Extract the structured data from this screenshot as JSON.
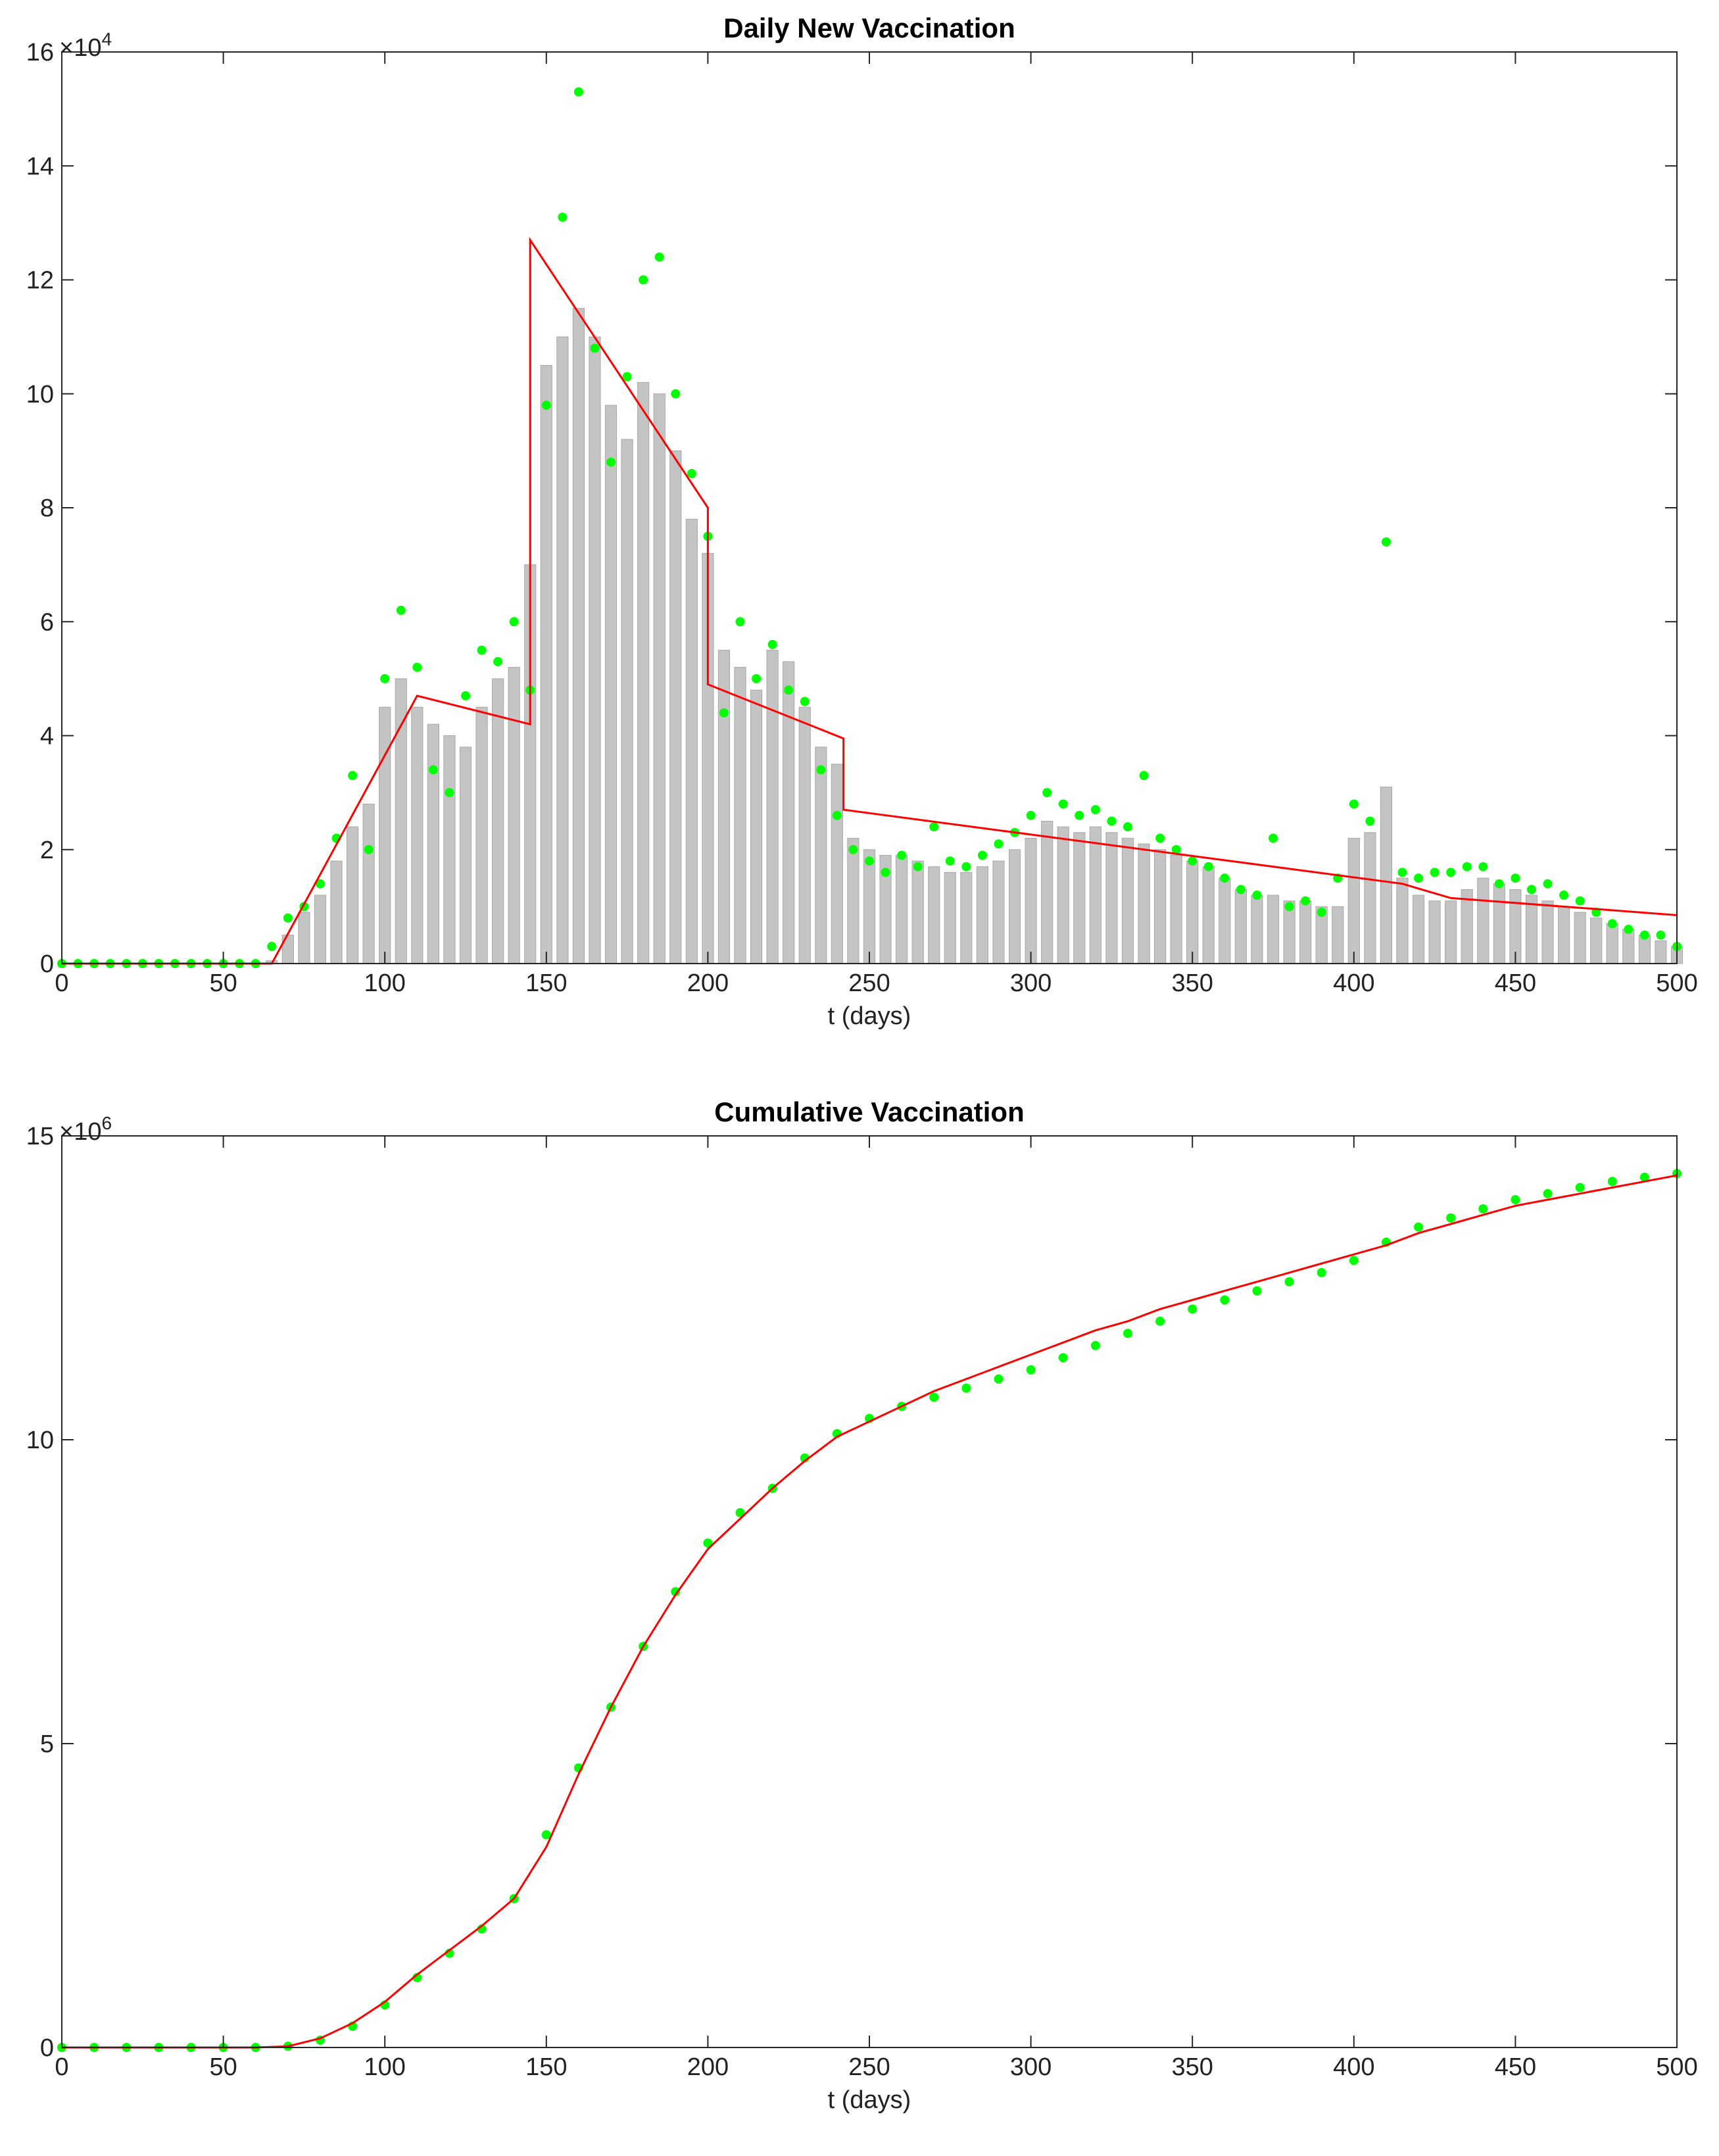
{
  "chart_data": [
    {
      "type": "combo",
      "title": "Daily New Vaccination",
      "x_label": "t (days)",
      "y_exponent_base": "×10",
      "y_exponent": 4,
      "xlim": [
        0,
        500
      ],
      "xticks": [
        0,
        50,
        100,
        150,
        200,
        250,
        300,
        350,
        400,
        450,
        500
      ],
      "ylim": [
        0,
        160000
      ],
      "yticks": [
        {
          "value": 0,
          "label": "0"
        },
        {
          "value": 20000,
          "label": "2"
        },
        {
          "value": 40000,
          "label": "4"
        },
        {
          "value": 60000,
          "label": "6"
        },
        {
          "value": 80000,
          "label": "8"
        },
        {
          "value": 100000,
          "label": "10"
        },
        {
          "value": 120000,
          "label": "12"
        },
        {
          "value": 140000,
          "label": "14"
        },
        {
          "value": 160000,
          "label": "16"
        }
      ],
      "series": [
        {
          "type": "bar",
          "color": "#c4c4c4",
          "x": [
            0,
            5,
            10,
            15,
            20,
            25,
            30,
            35,
            40,
            45,
            50,
            55,
            60,
            65,
            70,
            75,
            80,
            85,
            90,
            95,
            100,
            105,
            110,
            115,
            120,
            125,
            130,
            135,
            140,
            145,
            150,
            155,
            160,
            165,
            170,
            175,
            180,
            185,
            190,
            195,
            200,
            205,
            210,
            215,
            220,
            225,
            230,
            235,
            240,
            245,
            250,
            255,
            260,
            265,
            270,
            275,
            280,
            285,
            290,
            295,
            300,
            305,
            310,
            315,
            320,
            325,
            330,
            335,
            340,
            345,
            350,
            355,
            360,
            365,
            370,
            375,
            380,
            385,
            390,
            395,
            400,
            405,
            410,
            415,
            420,
            425,
            430,
            435,
            440,
            445,
            450,
            455,
            460,
            465,
            470,
            475,
            480,
            485,
            490,
            495,
            500
          ],
          "values": [
            0,
            0,
            0,
            0,
            0,
            0,
            0,
            0,
            0,
            0,
            0,
            0,
            0,
            500,
            5000,
            9000,
            12000,
            18000,
            24000,
            28000,
            45000,
            50000,
            45000,
            42000,
            40000,
            38000,
            45000,
            50000,
            52000,
            70000,
            105000,
            110000,
            115000,
            110000,
            98000,
            92000,
            102000,
            100000,
            90000,
            78000,
            72000,
            55000,
            52000,
            48000,
            55000,
            53000,
            45000,
            38000,
            35000,
            22000,
            20000,
            19000,
            19000,
            18000,
            17000,
            16000,
            16000,
            17000,
            18000,
            20000,
            22000,
            25000,
            24000,
            23000,
            24000,
            23000,
            22000,
            21000,
            20000,
            19000,
            18000,
            17000,
            15000,
            13000,
            12000,
            12000,
            11000,
            11000,
            10000,
            10000,
            22000,
            23000,
            31000,
            15000,
            12000,
            11000,
            11000,
            13000,
            15000,
            14000,
            13000,
            12000,
            11000,
            10000,
            9000,
            8000,
            7000,
            6000,
            5000,
            4000,
            3000
          ]
        },
        {
          "type": "scatter",
          "color": "#00ff00",
          "x": [
            0,
            5,
            10,
            15,
            20,
            25,
            30,
            35,
            40,
            45,
            50,
            55,
            60,
            65,
            70,
            75,
            80,
            85,
            90,
            95,
            100,
            105,
            110,
            115,
            120,
            125,
            130,
            135,
            140,
            145,
            150,
            155,
            160,
            165,
            170,
            175,
            180,
            185,
            190,
            195,
            200,
            205,
            210,
            215,
            220,
            225,
            230,
            235,
            240,
            245,
            250,
            255,
            260,
            265,
            270,
            275,
            280,
            285,
            290,
            295,
            300,
            305,
            310,
            315,
            320,
            325,
            330,
            335,
            340,
            345,
            350,
            355,
            360,
            365,
            370,
            375,
            380,
            385,
            390,
            395,
            400,
            405,
            410,
            415,
            420,
            425,
            430,
            435,
            440,
            445,
            450,
            455,
            460,
            465,
            470,
            475,
            480,
            485,
            490,
            495,
            500
          ],
          "values": [
            0,
            0,
            0,
            0,
            0,
            0,
            0,
            0,
            0,
            0,
            0,
            0,
            0,
            3000,
            8000,
            10000,
            14000,
            22000,
            33000,
            20000,
            50000,
            62000,
            52000,
            34000,
            30000,
            47000,
            55000,
            53000,
            60000,
            48000,
            98000,
            131000,
            153000,
            108000,
            88000,
            103000,
            120000,
            124000,
            100000,
            86000,
            75000,
            44000,
            60000,
            50000,
            56000,
            48000,
            46000,
            34000,
            26000,
            20000,
            18000,
            16000,
            19000,
            17000,
            24000,
            18000,
            17000,
            19000,
            21000,
            23000,
            26000,
            30000,
            28000,
            26000,
            27000,
            25000,
            24000,
            33000,
            22000,
            20000,
            18000,
            17000,
            15000,
            13000,
            12000,
            22000,
            10000,
            11000,
            9000,
            15000,
            28000,
            25000,
            74000,
            16000,
            15000,
            16000,
            16000,
            17000,
            17000,
            14000,
            15000,
            13000,
            14000,
            12000,
            11000,
            9000,
            7000,
            6000,
            5000,
            5000,
            3000
          ]
        },
        {
          "type": "line",
          "color": "#ff0000",
          "x": [
            0,
            65,
            110,
            145,
            145,
            200,
            200,
            242,
            242,
            415,
            430,
            500
          ],
          "values": [
            0,
            0,
            47000,
            42000,
            127000,
            80000,
            49000,
            39500,
            27000,
            14000,
            11500,
            8500
          ]
        }
      ]
    },
    {
      "type": "combo",
      "title": "Cumulative Vaccination",
      "x_label": "t (days)",
      "y_exponent_base": "×10",
      "y_exponent": 6,
      "xlim": [
        0,
        500
      ],
      "xticks": [
        0,
        50,
        100,
        150,
        200,
        250,
        300,
        350,
        400,
        450,
        500
      ],
      "ylim": [
        0,
        15000000
      ],
      "yticks": [
        {
          "value": 0,
          "label": "0"
        },
        {
          "value": 5000000,
          "label": "5"
        },
        {
          "value": 10000000,
          "label": "10"
        },
        {
          "value": 15000000,
          "label": "15"
        }
      ],
      "series": [
        {
          "type": "scatter",
          "color": "#00ff00",
          "x": [
            0,
            10,
            20,
            30,
            40,
            50,
            60,
            70,
            80,
            90,
            100,
            110,
            120,
            130,
            140,
            150,
            160,
            170,
            180,
            190,
            200,
            210,
            220,
            230,
            240,
            250,
            260,
            270,
            280,
            290,
            300,
            310,
            320,
            330,
            340,
            350,
            360,
            370,
            380,
            390,
            400,
            410,
            420,
            430,
            440,
            450,
            460,
            470,
            480,
            490,
            500
          ],
          "values": [
            0,
            0,
            0,
            0,
            0,
            0,
            0,
            20000,
            120000,
            350000,
            700000,
            1150000,
            1550000,
            1950000,
            2450000,
            3500000,
            4600000,
            5600000,
            6600000,
            7500000,
            8300000,
            8800000,
            9200000,
            9700000,
            10100000,
            10350000,
            10550000,
            10700000,
            10850000,
            11000000,
            11150000,
            11350000,
            11550000,
            11750000,
            11950000,
            12150000,
            12300000,
            12450000,
            12600000,
            12750000,
            12950000,
            13250000,
            13500000,
            13650000,
            13800000,
            13950000,
            14050000,
            14150000,
            14250000,
            14320000,
            14380000
          ]
        },
        {
          "type": "line",
          "color": "#ff0000",
          "x": [
            0,
            10,
            20,
            30,
            40,
            50,
            60,
            70,
            80,
            90,
            100,
            110,
            120,
            130,
            140,
            150,
            160,
            170,
            180,
            190,
            200,
            210,
            220,
            230,
            240,
            250,
            260,
            270,
            280,
            290,
            300,
            310,
            320,
            330,
            340,
            350,
            360,
            370,
            380,
            390,
            400,
            410,
            420,
            430,
            440,
            450,
            460,
            470,
            480,
            490,
            500
          ],
          "values": [
            0,
            0,
            0,
            0,
            0,
            0,
            0,
            20000,
            150000,
            400000,
            750000,
            1200000,
            1600000,
            2000000,
            2450000,
            3300000,
            4500000,
            5600000,
            6600000,
            7450000,
            8200000,
            8700000,
            9200000,
            9650000,
            10050000,
            10300000,
            10550000,
            10800000,
            11000000,
            11200000,
            11400000,
            11600000,
            11800000,
            11950000,
            12150000,
            12300000,
            12450000,
            12600000,
            12750000,
            12900000,
            13050000,
            13200000,
            13400000,
            13550000,
            13700000,
            13850000,
            13950000,
            14050000,
            14150000,
            14250000,
            14350000
          ]
        }
      ]
    }
  ]
}
